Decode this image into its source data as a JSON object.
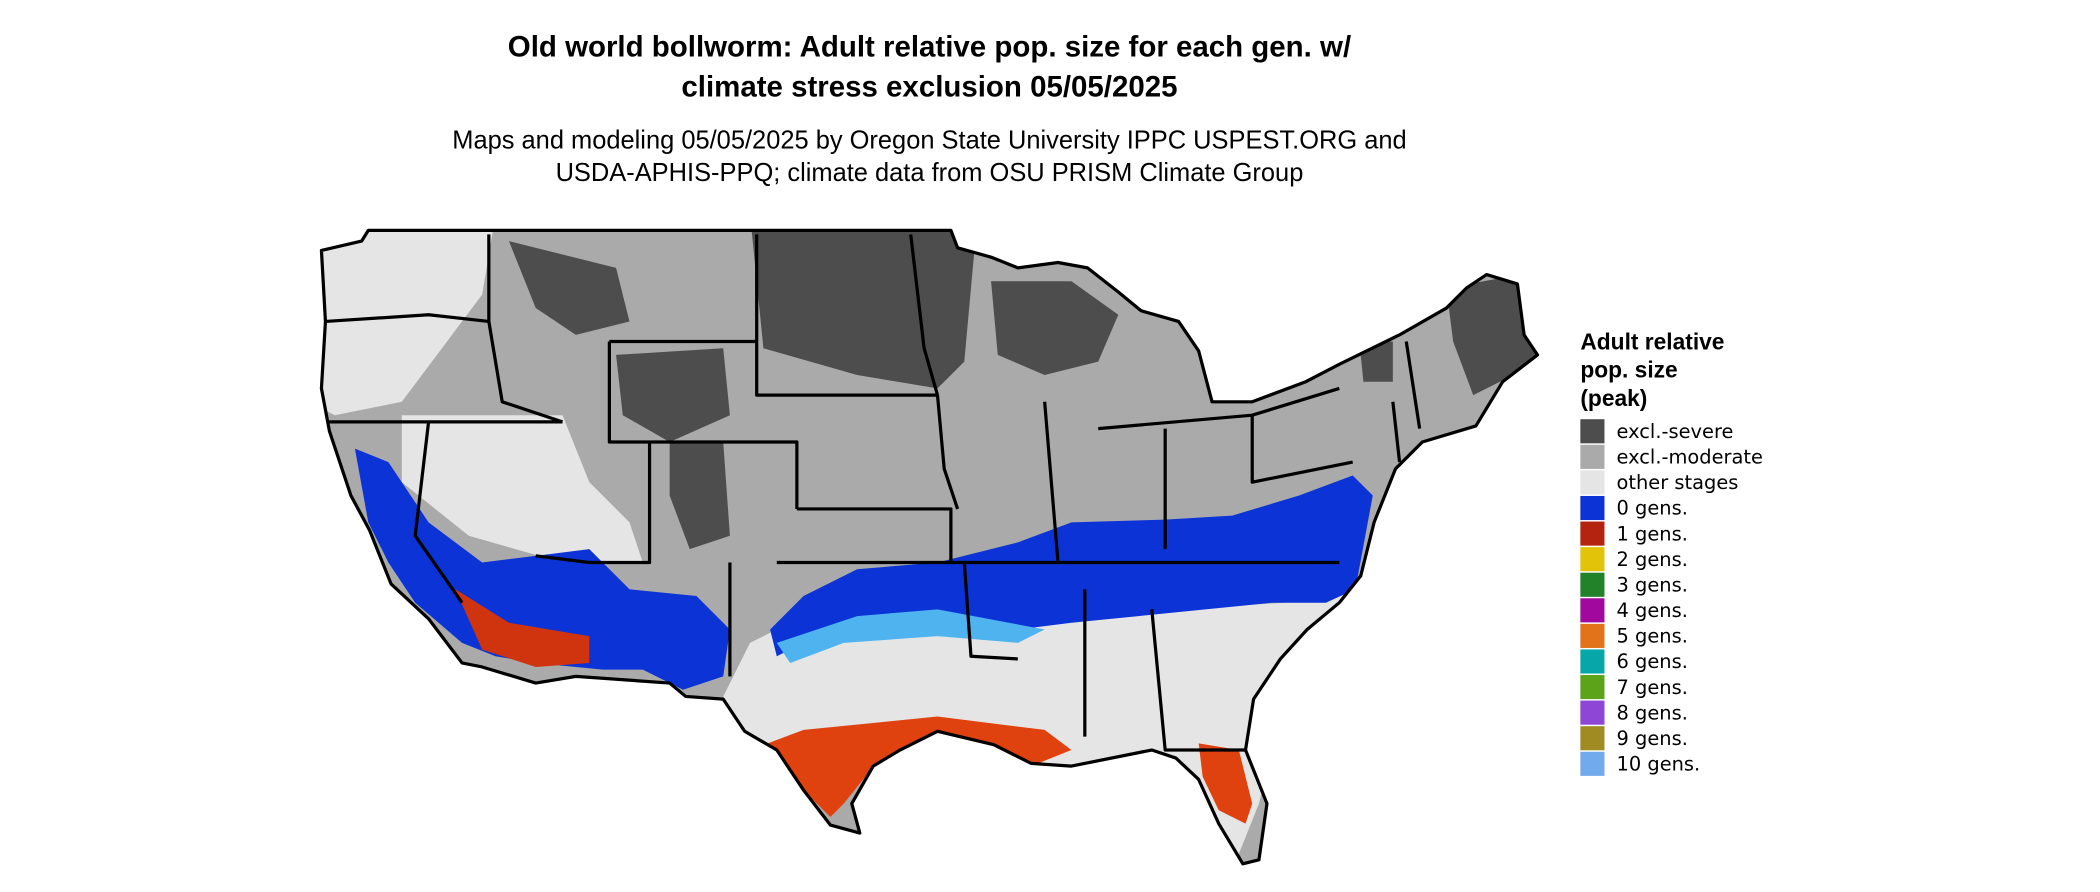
{
  "header": {
    "title_lines": [
      "Old world bollworm: Adult relative pop. size for each gen. w/",
      "climate stress exclusion 05/05/2025"
    ],
    "subtitle_lines": [
      "Maps and modeling 05/05/2025 by Oregon State University IPPC USPEST.ORG and",
      "USDA-APHIS-PPQ; climate data from OSU PRISM Climate Group"
    ]
  },
  "legend": {
    "title_lines": [
      "Adult relative",
      "pop. size",
      "(peak)"
    ],
    "items": [
      {
        "label": "excl.-severe",
        "color": "#4d4d4d"
      },
      {
        "label": "excl.-moderate",
        "color": "#aaaaaa"
      },
      {
        "label": "other stages",
        "color": "#e5e5e5"
      },
      {
        "label": "0 gens.",
        "color": "#0b33d6"
      },
      {
        "label": "1 gens.",
        "color": "#b3230f"
      },
      {
        "label": "2 gens.",
        "color": "#e3c20a"
      },
      {
        "label": "3 gens.",
        "color": "#22822a"
      },
      {
        "label": "4 gens.",
        "color": "#a1089e"
      },
      {
        "label": "5 gens.",
        "color": "#e2731b"
      },
      {
        "label": "6 gens.",
        "color": "#07a6a8"
      },
      {
        "label": "7 gens.",
        "color": "#5ca319"
      },
      {
        "label": "8 gens.",
        "color": "#8d46d6"
      },
      {
        "label": "9 gens.",
        "color": "#a08a22"
      },
      {
        "label": "10 gens.",
        "color": "#72aaee"
      }
    ]
  }
}
